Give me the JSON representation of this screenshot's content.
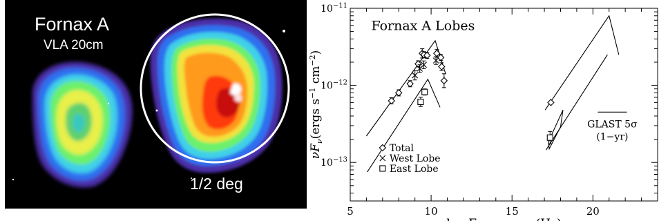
{
  "radio_image": {
    "title": "Fornax A",
    "subtitle": "VLA 20cm",
    "scale_label": "1/2 deg"
  },
  "chart_data": {
    "type": "scatter",
    "title": "Fornax A Lobes",
    "xlabel": "log Frequency (Hz)",
    "ylabel_parts": [
      "νF",
      "ν",
      "(ergs s",
      "−1",
      " cm",
      "−2",
      ")"
    ],
    "xlim": [
      5,
      24
    ],
    "ylim_log10": [
      -13.5,
      -11
    ],
    "x_ticks": [
      5,
      10,
      15,
      20
    ],
    "y_ticks": [
      {
        "exp": -13,
        "label_base": "10",
        "label_exp": "−13"
      },
      {
        "exp": -12,
        "label_base": "10",
        "label_exp": "−12"
      },
      {
        "exp": -11,
        "label_base": "10",
        "label_exp": "−11"
      }
    ],
    "legend": {
      "position": "bottom-left",
      "entries": [
        {
          "marker": "diamond",
          "label": "Total"
        },
        {
          "marker": "cross",
          "label": "West Lobe"
        },
        {
          "marker": "square",
          "label": "East Lobe"
        }
      ]
    },
    "series": [
      {
        "name": "Total",
        "marker": "diamond",
        "points": [
          {
            "x": 7.55,
            "y": 6.3e-13,
            "err": 0.04
          },
          {
            "x": 8.0,
            "y": 8e-13,
            "err": 0.04
          },
          {
            "x": 8.7,
            "y": 1.05e-12,
            "err": 0.04
          },
          {
            "x": 9.2,
            "y": 1.9e-12,
            "err": 0.04
          },
          {
            "x": 9.45,
            "y": 2.6e-12,
            "err": 0.06
          },
          {
            "x": 9.55,
            "y": 2.5e-12,
            "err": 0.04
          },
          {
            "x": 9.75,
            "y": 2.45e-12,
            "err": 0.04
          },
          {
            "x": 10.35,
            "y": 2.6e-12,
            "err": 0.05
          },
          {
            "x": 10.6,
            "y": 2.3e-12,
            "err": 0.04
          },
          {
            "x": 10.65,
            "y": 1.75e-12,
            "err": 0.05
          },
          {
            "x": 10.8,
            "y": 1.15e-12,
            "err": 0.09
          },
          {
            "x": 17.4,
            "y": 6e-13,
            "err": 0.0
          }
        ]
      },
      {
        "name": "West Lobe",
        "marker": "cross",
        "points": [
          {
            "x": 9.0,
            "y": 1.35e-12,
            "err": 0.06
          },
          {
            "x": 9.3,
            "y": 1.65e-12,
            "err": 0.05
          },
          {
            "x": 9.55,
            "y": 1.85e-12,
            "err": 0.05
          },
          {
            "x": 10.3,
            "y": 2.1e-12,
            "err": 0.05
          }
        ]
      },
      {
        "name": "East Lobe",
        "marker": "square",
        "points": [
          {
            "x": 9.35,
            "y": 6.1e-13,
            "err": 0.06
          },
          {
            "x": 9.6,
            "y": 8.2e-13,
            "err": 0.04
          },
          {
            "x": 17.35,
            "y": 2.1e-13,
            "err": 0.08
          }
        ]
      }
    ],
    "model_lines": [
      {
        "name": "total-synchrotron-model",
        "points": [
          [
            6.0,
            2.2e-13
          ],
          [
            10.25,
            3.8e-12
          ],
          [
            10.9,
            1.4e-12
          ]
        ]
      },
      {
        "name": "east-synchrotron-model",
        "points": [
          [
            6.05,
            7.5e-14
          ],
          [
            9.8,
            1.2e-12
          ],
          [
            10.55,
            5.2e-13
          ]
        ]
      },
      {
        "name": "total-inverse-compton-model",
        "points": [
          [
            17.05,
            4.8e-13
          ],
          [
            21.0,
            8e-12
          ],
          [
            21.6,
            2.5e-12
          ]
        ]
      },
      {
        "name": "east-inverse-compton-model",
        "points": [
          [
            17.1,
            1.45e-13
          ],
          [
            20.9,
            2.5e-12
          ]
        ]
      }
    ],
    "glast_sensitivity": {
      "label_main": "GLAST 5σ",
      "label_sub": "(1−yr)",
      "x_range": [
        20.3,
        22.1
      ],
      "y": 4.5e-13
    },
    "annotation_bowtie": [
      [
        17.3,
        1.5e-13
      ],
      [
        18.0,
        2.9e-13
      ],
      [
        18.15,
        4.8e-13
      ],
      [
        17.25,
        1.85e-13
      ]
    ]
  }
}
